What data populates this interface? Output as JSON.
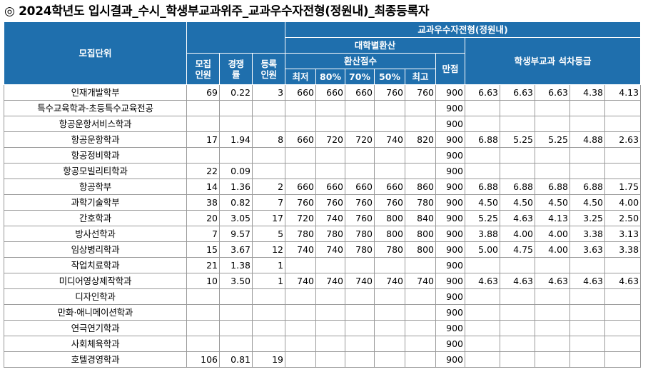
{
  "title": "◎ 2024학년도 입시결과_수시_학생부교과위주_교과우수자전형(정원내)_최종등록자",
  "header": {
    "unit": "모집단위",
    "quota": "모집\n인원",
    "competition": "경쟁\n률",
    "registered": "등록\n인원",
    "group": "교과우수자전형(정원내)",
    "univ_conversion": "대학별환산",
    "converted_score": "환산점수",
    "full_score": "만점",
    "grade_group": "학생부교과 석차등급",
    "cols": [
      "최저",
      "80%",
      "70%",
      "50%",
      "최고"
    ]
  },
  "rows": [
    {
      "unit": "인재개발학부",
      "quota": "69",
      "comp": "0.22",
      "reg": "3",
      "score": [
        "660",
        "660",
        "660",
        "760",
        "760"
      ],
      "full": "900",
      "grade": [
        "6.63",
        "6.63",
        "6.63",
        "4.38",
        "4.13"
      ]
    },
    {
      "unit": "특수교육학과-초등특수교육전공",
      "quota": "",
      "comp": "",
      "reg": "",
      "score": [
        "",
        "",
        "",
        "",
        ""
      ],
      "full": "900",
      "grade": [
        "",
        "",
        "",
        "",
        ""
      ]
    },
    {
      "unit": "항공운항서비스학과",
      "quota": "",
      "comp": "",
      "reg": "",
      "score": [
        "",
        "",
        "",
        "",
        ""
      ],
      "full": "900",
      "grade": [
        "",
        "",
        "",
        "",
        ""
      ]
    },
    {
      "unit": "항공운항학과",
      "quota": "17",
      "comp": "1.94",
      "reg": "8",
      "score": [
        "660",
        "720",
        "720",
        "740",
        "820"
      ],
      "full": "900",
      "grade": [
        "6.88",
        "5.25",
        "5.25",
        "4.88",
        "2.63"
      ]
    },
    {
      "unit": "항공정비학과",
      "quota": "",
      "comp": "",
      "reg": "",
      "score": [
        "",
        "",
        "",
        "",
        ""
      ],
      "full": "900",
      "grade": [
        "",
        "",
        "",
        "",
        ""
      ]
    },
    {
      "unit": "항공모빌리티학과",
      "quota": "22",
      "comp": "0.09",
      "reg": "",
      "score": [
        "",
        "",
        "",
        "",
        ""
      ],
      "full": "900",
      "grade": [
        "",
        "",
        "",
        "",
        ""
      ]
    },
    {
      "unit": "항공학부",
      "quota": "14",
      "comp": "1.36",
      "reg": "2",
      "score": [
        "660",
        "660",
        "660",
        "660",
        "860"
      ],
      "full": "900",
      "grade": [
        "6.88",
        "6.88",
        "6.88",
        "6.88",
        "1.75"
      ]
    },
    {
      "unit": "과학기술학부",
      "quota": "38",
      "comp": "0.82",
      "reg": "7",
      "score": [
        "760",
        "760",
        "760",
        "760",
        "780"
      ],
      "full": "900",
      "grade": [
        "4.50",
        "4.50",
        "4.50",
        "4.50",
        "4.00"
      ]
    },
    {
      "unit": "간호학과",
      "quota": "20",
      "comp": "3.05",
      "reg": "17",
      "score": [
        "720",
        "740",
        "760",
        "800",
        "840"
      ],
      "full": "900",
      "grade": [
        "5.25",
        "4.63",
        "4.13",
        "3.25",
        "2.50"
      ]
    },
    {
      "unit": "방사선학과",
      "quota": "7",
      "comp": "9.57",
      "reg": "5",
      "score": [
        "780",
        "780",
        "780",
        "800",
        "800"
      ],
      "full": "900",
      "grade": [
        "3.88",
        "4.00",
        "4.00",
        "3.38",
        "3.13"
      ]
    },
    {
      "unit": "임상병리학과",
      "quota": "15",
      "comp": "3.67",
      "reg": "12",
      "score": [
        "740",
        "740",
        "780",
        "780",
        "800"
      ],
      "full": "900",
      "grade": [
        "5.00",
        "4.75",
        "4.00",
        "3.63",
        "3.38"
      ]
    },
    {
      "unit": "작업치료학과",
      "quota": "21",
      "comp": "1.38",
      "reg": "1",
      "score": [
        "",
        "",
        "",
        "",
        ""
      ],
      "full": "900",
      "grade": [
        "",
        "",
        "",
        "",
        ""
      ]
    },
    {
      "unit": "미디어영상제작학과",
      "quota": "10",
      "comp": "3.50",
      "reg": "1",
      "score": [
        "740",
        "740",
        "740",
        "740",
        "740"
      ],
      "full": "900",
      "grade": [
        "4.63",
        "4.63",
        "4.63",
        "4.63",
        "4.63"
      ]
    },
    {
      "unit": "디자인학과",
      "quota": "",
      "comp": "",
      "reg": "",
      "score": [
        "",
        "",
        "",
        "",
        ""
      ],
      "full": "900",
      "grade": [
        "",
        "",
        "",
        "",
        ""
      ]
    },
    {
      "unit": "만화·애니메이션학과",
      "quota": "",
      "comp": "",
      "reg": "",
      "score": [
        "",
        "",
        "",
        "",
        ""
      ],
      "full": "900",
      "grade": [
        "",
        "",
        "",
        "",
        ""
      ]
    },
    {
      "unit": "연극연기학과",
      "quota": "",
      "comp": "",
      "reg": "",
      "score": [
        "",
        "",
        "",
        "",
        ""
      ],
      "full": "900",
      "grade": [
        "",
        "",
        "",
        "",
        ""
      ]
    },
    {
      "unit": "사회체육학과",
      "quota": "",
      "comp": "",
      "reg": "",
      "score": [
        "",
        "",
        "",
        "",
        ""
      ],
      "full": "900",
      "grade": [
        "",
        "",
        "",
        "",
        ""
      ]
    },
    {
      "unit": "호텔경영학과",
      "quota": "106",
      "comp": "0.81",
      "reg": "19",
      "score": [
        "",
        "",
        "",
        "",
        ""
      ],
      "full": "900",
      "grade": [
        "",
        "",
        "",
        "",
        ""
      ]
    }
  ]
}
